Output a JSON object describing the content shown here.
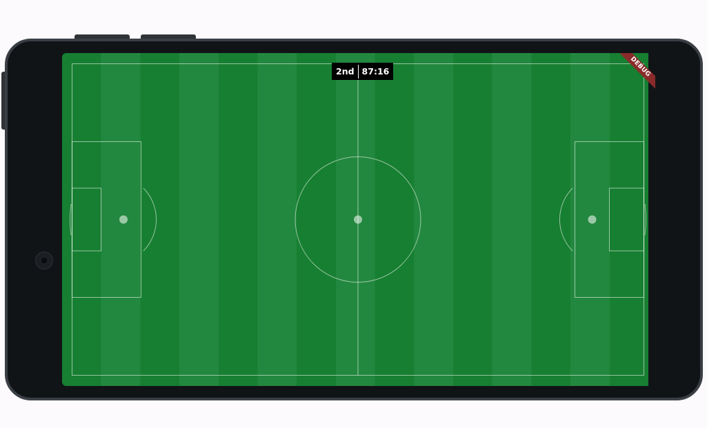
{
  "timer": {
    "period": "2nd",
    "clock": "87:16"
  },
  "debug_banner": {
    "label": "DEBUG"
  },
  "colors": {
    "pitch_stripe_dark": "#177f31",
    "pitch_stripe_light": "#23883f",
    "pitch_lines": "#ffffff",
    "timer_background": "#000000",
    "debug_banner": "#8b2a2a",
    "device_frame": "#111417"
  }
}
